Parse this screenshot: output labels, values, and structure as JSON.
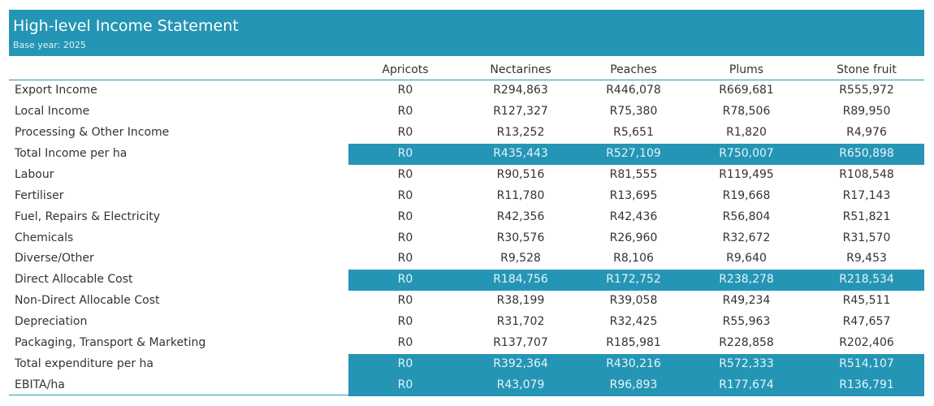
{
  "header": {
    "title": "High-level Income Statement",
    "subtitle": "Base year: 2025"
  },
  "colors": {
    "accent": "#2595b5"
  },
  "columns": [
    "Apricots",
    "Nectarines",
    "Peaches",
    "Plums",
    "Stone fruit"
  ],
  "rows": [
    {
      "label": "Export Income",
      "values": [
        "R0",
        "R294,863",
        "R446,078",
        "R669,681",
        "R555,972"
      ],
      "highlight": false
    },
    {
      "label": "Local Income",
      "values": [
        "R0",
        "R127,327",
        "R75,380",
        "R78,506",
        "R89,950"
      ],
      "highlight": false
    },
    {
      "label": "Processing & Other Income",
      "values": [
        "R0",
        "R13,252",
        "R5,651",
        "R1,820",
        "R4,976"
      ],
      "highlight": false
    },
    {
      "label": "Total Income per ha",
      "values": [
        "R0",
        "R435,443",
        "R527,109",
        "R750,007",
        "R650,898"
      ],
      "highlight": true
    },
    {
      "label": "Labour",
      "values": [
        "R0",
        "R90,516",
        "R81,555",
        "R119,495",
        "R108,548"
      ],
      "highlight": false
    },
    {
      "label": "Fertiliser",
      "values": [
        "R0",
        "R11,780",
        "R13,695",
        "R19,668",
        "R17,143"
      ],
      "highlight": false
    },
    {
      "label": "Fuel, Repairs & Electricity",
      "values": [
        "R0",
        "R42,356",
        "R42,436",
        "R56,804",
        "R51,821"
      ],
      "highlight": false
    },
    {
      "label": "Chemicals",
      "values": [
        "R0",
        "R30,576",
        "R26,960",
        "R32,672",
        "R31,570"
      ],
      "highlight": false
    },
    {
      "label": "Diverse/Other",
      "values": [
        "R0",
        "R9,528",
        "R8,106",
        "R9,640",
        "R9,453"
      ],
      "highlight": false
    },
    {
      "label": "Direct Allocable Cost",
      "values": [
        "R0",
        "R184,756",
        "R172,752",
        "R238,278",
        "R218,534"
      ],
      "highlight": true
    },
    {
      "label": "Non-Direct Allocable Cost",
      "values": [
        "R0",
        "R38,199",
        "R39,058",
        "R49,234",
        "R45,511"
      ],
      "highlight": false
    },
    {
      "label": "Depreciation",
      "values": [
        "R0",
        "R31,702",
        "R32,425",
        "R55,963",
        "R47,657"
      ],
      "highlight": false
    },
    {
      "label": "Packaging, Transport & Marketing",
      "values": [
        "R0",
        "R137,707",
        "R185,981",
        "R228,858",
        "R202,406"
      ],
      "highlight": false
    },
    {
      "label": "Total expenditure per ha",
      "values": [
        "R0",
        "R392,364",
        "R430,216",
        "R572,333",
        "R514,107"
      ],
      "highlight": true
    },
    {
      "label": "EBITA/ha",
      "values": [
        "R0",
        "R43,079",
        "R96,893",
        "R177,674",
        "R136,791"
      ],
      "highlight": true
    }
  ]
}
